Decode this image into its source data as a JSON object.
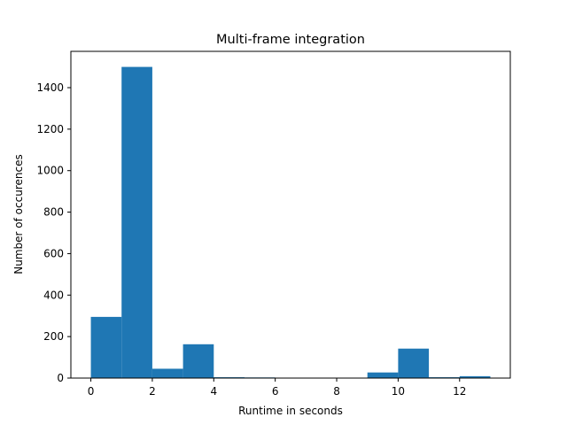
{
  "chart_data": {
    "type": "bar",
    "title": "Multi-frame integration",
    "xlabel": "Runtime in seconds",
    "ylabel": "Number of occurences",
    "xlim": [
      -0.65,
      13.65
    ],
    "ylim": [
      0,
      1575
    ],
    "grid": false,
    "legend": "none",
    "bar_color": "#1f77b4",
    "x_ticks": [
      0,
      2,
      4,
      6,
      8,
      10,
      12
    ],
    "y_ticks": [
      0,
      200,
      400,
      600,
      800,
      1000,
      1200,
      1400
    ],
    "bins": [
      {
        "x0": 0,
        "x1": 1,
        "value": 295
      },
      {
        "x0": 1,
        "x1": 2,
        "value": 1500
      },
      {
        "x0": 2,
        "x1": 3,
        "value": 45
      },
      {
        "x0": 3,
        "x1": 4,
        "value": 163
      },
      {
        "x0": 4,
        "x1": 5,
        "value": 4
      },
      {
        "x0": 5,
        "x1": 6,
        "value": 3
      },
      {
        "x0": 6,
        "x1": 7,
        "value": 0
      },
      {
        "x0": 7,
        "x1": 8,
        "value": 0
      },
      {
        "x0": 8,
        "x1": 9,
        "value": 0
      },
      {
        "x0": 9,
        "x1": 10,
        "value": 27
      },
      {
        "x0": 10,
        "x1": 11,
        "value": 142
      },
      {
        "x0": 11,
        "x1": 12,
        "value": 4
      },
      {
        "x0": 12,
        "x1": 13,
        "value": 9
      }
    ]
  }
}
